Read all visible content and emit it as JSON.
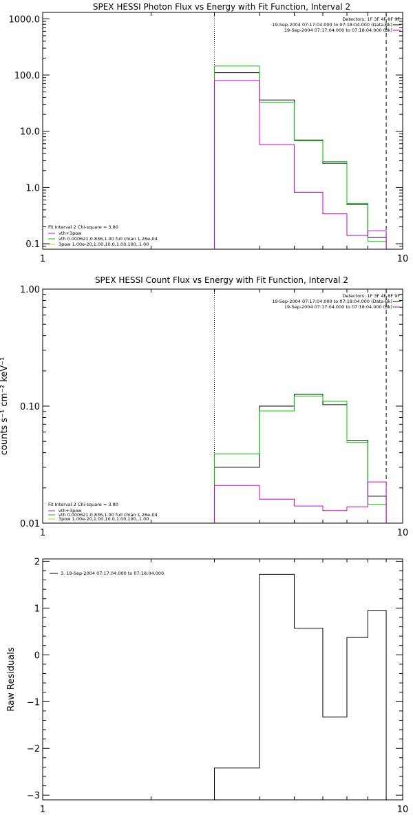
{
  "chart_data": [
    {
      "type": "line",
      "title": "SPEX HESSI Photon Flux vs Energy with Fit Function, Interval 2",
      "ylabel": "",
      "xlabel": "",
      "xscale": "log",
      "yscale": "log",
      "xlim": [
        1,
        10
      ],
      "ylim": [
        0.08,
        1300
      ],
      "x_tick_labels": [
        {
          "v": 1,
          "label": "1"
        },
        {
          "v": 10,
          "label": "10"
        }
      ],
      "y_tick_labels": [
        {
          "v": 1000,
          "label": "1000.0"
        },
        {
          "v": 100,
          "label": "100.0"
        },
        {
          "v": 10,
          "label": "10.0"
        },
        {
          "v": 1,
          "label": "1.0"
        },
        {
          "v": 0.1,
          "label": "0.1"
        }
      ],
      "vlines": [
        {
          "x": 3.0,
          "style": "dotted"
        },
        {
          "x": 9.0,
          "style": "dashed"
        }
      ],
      "info_box": {
        "detectors": "Detectors: 1F 3F 4F 8F 9F",
        "lines": [
          {
            "text": "19-Sep-2004 07:17:04.000 to 07:18:04.000 (Data-Bk)",
            "color": "#000000"
          },
          {
            "text": "19-Sep-2004 07:17:04.000 to 07:18:04.000 (Bk)",
            "color": "#cc00cc"
          }
        ]
      },
      "fit_legend": {
        "header": "Fit Interval 2   Chi-square = 3.80",
        "entries": [
          {
            "text": "vth+3pow",
            "color": "#cc00cc"
          },
          {
            "text": "vth 0.000621,0.836,1.00  full chian 1.26e-04",
            "color": "#00cc00"
          },
          {
            "text": "3pow 1.00e-20,1.00,10.0,1.00,100.,1.00",
            "color": "#cccc00"
          }
        ]
      },
      "bin_edges": [
        3.0,
        4.0,
        5.0,
        6.0,
        7.0,
        8.0,
        9.0
      ],
      "series": [
        {
          "name": "Data-Bk",
          "color": "#000000",
          "values": [
            110,
            36,
            7.0,
            2.7,
            0.5,
            0.13
          ]
        },
        {
          "name": "vth+3pow",
          "color": "#00cc00",
          "values": [
            145,
            33,
            6.8,
            2.9,
            0.52,
            0.11
          ]
        },
        {
          "name": "Bk",
          "color": "#cc00cc",
          "values": [
            80,
            5.8,
            0.82,
            0.34,
            0.14,
            0.17
          ]
        }
      ]
    },
    {
      "type": "line",
      "title": "SPEX HESSI Count Flux vs Energy with Fit Function, Interval 2",
      "ylabel": "counts s⁻¹ cm⁻² keV⁻¹",
      "xlabel": "",
      "xscale": "log",
      "yscale": "log",
      "xlim": [
        1,
        10
      ],
      "ylim": [
        0.01,
        1.0
      ],
      "x_tick_labels": [
        {
          "v": 1,
          "label": "1"
        },
        {
          "v": 10,
          "label": "10"
        }
      ],
      "y_tick_labels": [
        {
          "v": 1.0,
          "label": "1.00"
        },
        {
          "v": 0.1,
          "label": "0.10"
        },
        {
          "v": 0.01,
          "label": "0.01"
        }
      ],
      "vlines": [
        {
          "x": 3.0,
          "style": "dotted"
        },
        {
          "x": 9.0,
          "style": "dashed"
        }
      ],
      "info_box": {
        "detectors": "Detectors: 1F 3F 4F 8F 9F",
        "lines": [
          {
            "text": "19-Sep-2004 07:17:04.000 to 07:18:04.000 (Data-Bk)",
            "color": "#000000"
          },
          {
            "text": "19-Sep-2004 07:17:04.000 to 07:18:04.000 (Bk)",
            "color": "#cc00cc"
          }
        ]
      },
      "fit_legend": {
        "header": "Fit Interval 2   Chi-square = 3.80",
        "entries": [
          {
            "text": "vth+3pow",
            "color": "#cc00cc"
          },
          {
            "text": "vth 0.000621,0.836,1.00  full chian 1.26e-04",
            "color": "#00cc00"
          },
          {
            "text": "3pow 1.00e-20,1.00,10.0,1.00,100.,1.00",
            "color": "#cccc00"
          }
        ]
      },
      "bin_edges": [
        3.0,
        4.0,
        5.0,
        6.0,
        7.0,
        8.0,
        9.0
      ],
      "series": [
        {
          "name": "Data-Bk",
          "color": "#000000",
          "values": [
            0.03,
            0.1,
            0.126,
            0.103,
            0.051,
            0.017
          ]
        },
        {
          "name": "vth+3pow",
          "color": "#00cc00",
          "values": [
            0.039,
            0.091,
            0.122,
            0.11,
            0.049,
            0.0145
          ]
        },
        {
          "name": "Bk",
          "color": "#cc00cc",
          "values": [
            0.021,
            0.016,
            0.014,
            0.0128,
            0.0138,
            0.0225
          ]
        }
      ]
    },
    {
      "type": "line",
      "title": "",
      "ylabel": "Raw Residuals",
      "xlabel": "",
      "xscale": "log",
      "yscale": "linear",
      "xlim": [
        1,
        10
      ],
      "ylim": [
        -3.1,
        2.05
      ],
      "x_tick_labels": [
        {
          "v": 1,
          "label": "1"
        },
        {
          "v": 10,
          "label": "10"
        }
      ],
      "y_tick_labels": [
        {
          "v": 2,
          "label": "2"
        },
        {
          "v": 1,
          "label": "1"
        },
        {
          "v": 0,
          "label": "0"
        },
        {
          "v": -1,
          "label": "−1"
        },
        {
          "v": -2,
          "label": "−2"
        },
        {
          "v": -3,
          "label": "−3"
        }
      ],
      "legend": {
        "text": "3. 19-Sep-2004 07:17:04.000 to 07:18:04.000",
        "position": "top-left"
      },
      "bin_edges": [
        3.0,
        4.0,
        5.0,
        6.0,
        7.0,
        8.0,
        9.0
      ],
      "series": [
        {
          "name": "",
          "color": "#000000",
          "values": [
            -2.42,
            1.72,
            0.57,
            -1.33,
            0.37,
            0.95
          ]
        }
      ]
    }
  ]
}
